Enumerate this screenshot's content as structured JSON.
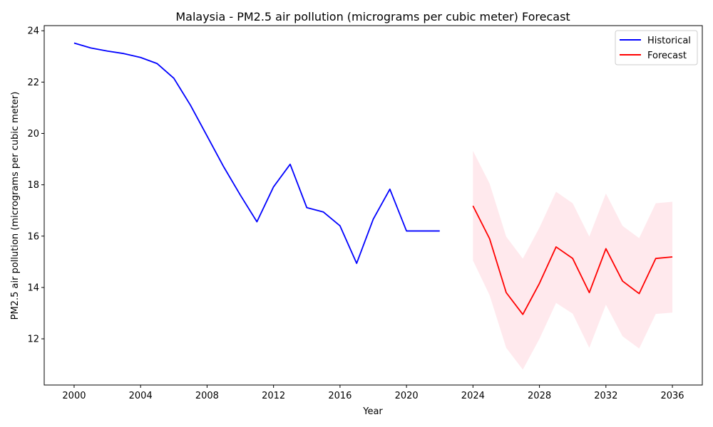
{
  "chart_data": {
    "type": "line",
    "title": "Malaysia - PM2.5 air pollution (micrograms per cubic meter) Forecast",
    "xlabel": "Year",
    "ylabel": "PM2.5 air pollution (micrograms per cubic meter)",
    "xlim": [
      1998.2,
      2037.8
    ],
    "ylim": [
      10.2,
      24.2
    ],
    "xticks": [
      2000,
      2004,
      2008,
      2012,
      2016,
      2020,
      2024,
      2028,
      2032,
      2036
    ],
    "yticks": [
      12,
      14,
      16,
      18,
      20,
      22,
      24
    ],
    "grid": false,
    "legend_position": "top-right",
    "series": [
      {
        "name": "Historical",
        "color": "#0000ff",
        "x": [
          2000,
          2001,
          2002,
          2003,
          2004,
          2005,
          2006,
          2007,
          2008,
          2009,
          2010,
          2011,
          2012,
          2013,
          2014,
          2015,
          2016,
          2017,
          2018,
          2019,
          2020,
          2021,
          2022
        ],
        "y": [
          23.52,
          23.33,
          23.21,
          23.11,
          22.96,
          22.72,
          22.15,
          21.1,
          19.9,
          18.7,
          17.6,
          16.56,
          17.92,
          18.8,
          17.11,
          16.94,
          16.4,
          14.94,
          16.66,
          17.83,
          16.2,
          16.2,
          16.2
        ]
      },
      {
        "name": "Forecast",
        "color": "#ff0000",
        "x": [
          2024,
          2025,
          2026,
          2027,
          2028,
          2029,
          2030,
          2031,
          2032,
          2033,
          2034,
          2035,
          2036
        ],
        "y": [
          17.18,
          15.9,
          13.8,
          12.95,
          14.16,
          15.58,
          15.13,
          13.8,
          15.51,
          14.25,
          13.76,
          15.13,
          15.19
        ]
      }
    ],
    "confidence_band": {
      "color": "#ffc0cb",
      "x": [
        2024,
        2025,
        2026,
        2027,
        2028,
        2029,
        2030,
        2031,
        2032,
        2033,
        2034,
        2035,
        2036
      ],
      "lower": [
        15.05,
        13.7,
        11.65,
        10.8,
        12.0,
        13.4,
        12.98,
        11.65,
        13.33,
        12.1,
        11.62,
        12.97,
        13.02
      ],
      "upper": [
        19.32,
        18.05,
        15.98,
        15.12,
        16.33,
        17.73,
        17.28,
        15.98,
        17.66,
        16.4,
        15.92,
        17.28,
        17.34
      ]
    }
  }
}
